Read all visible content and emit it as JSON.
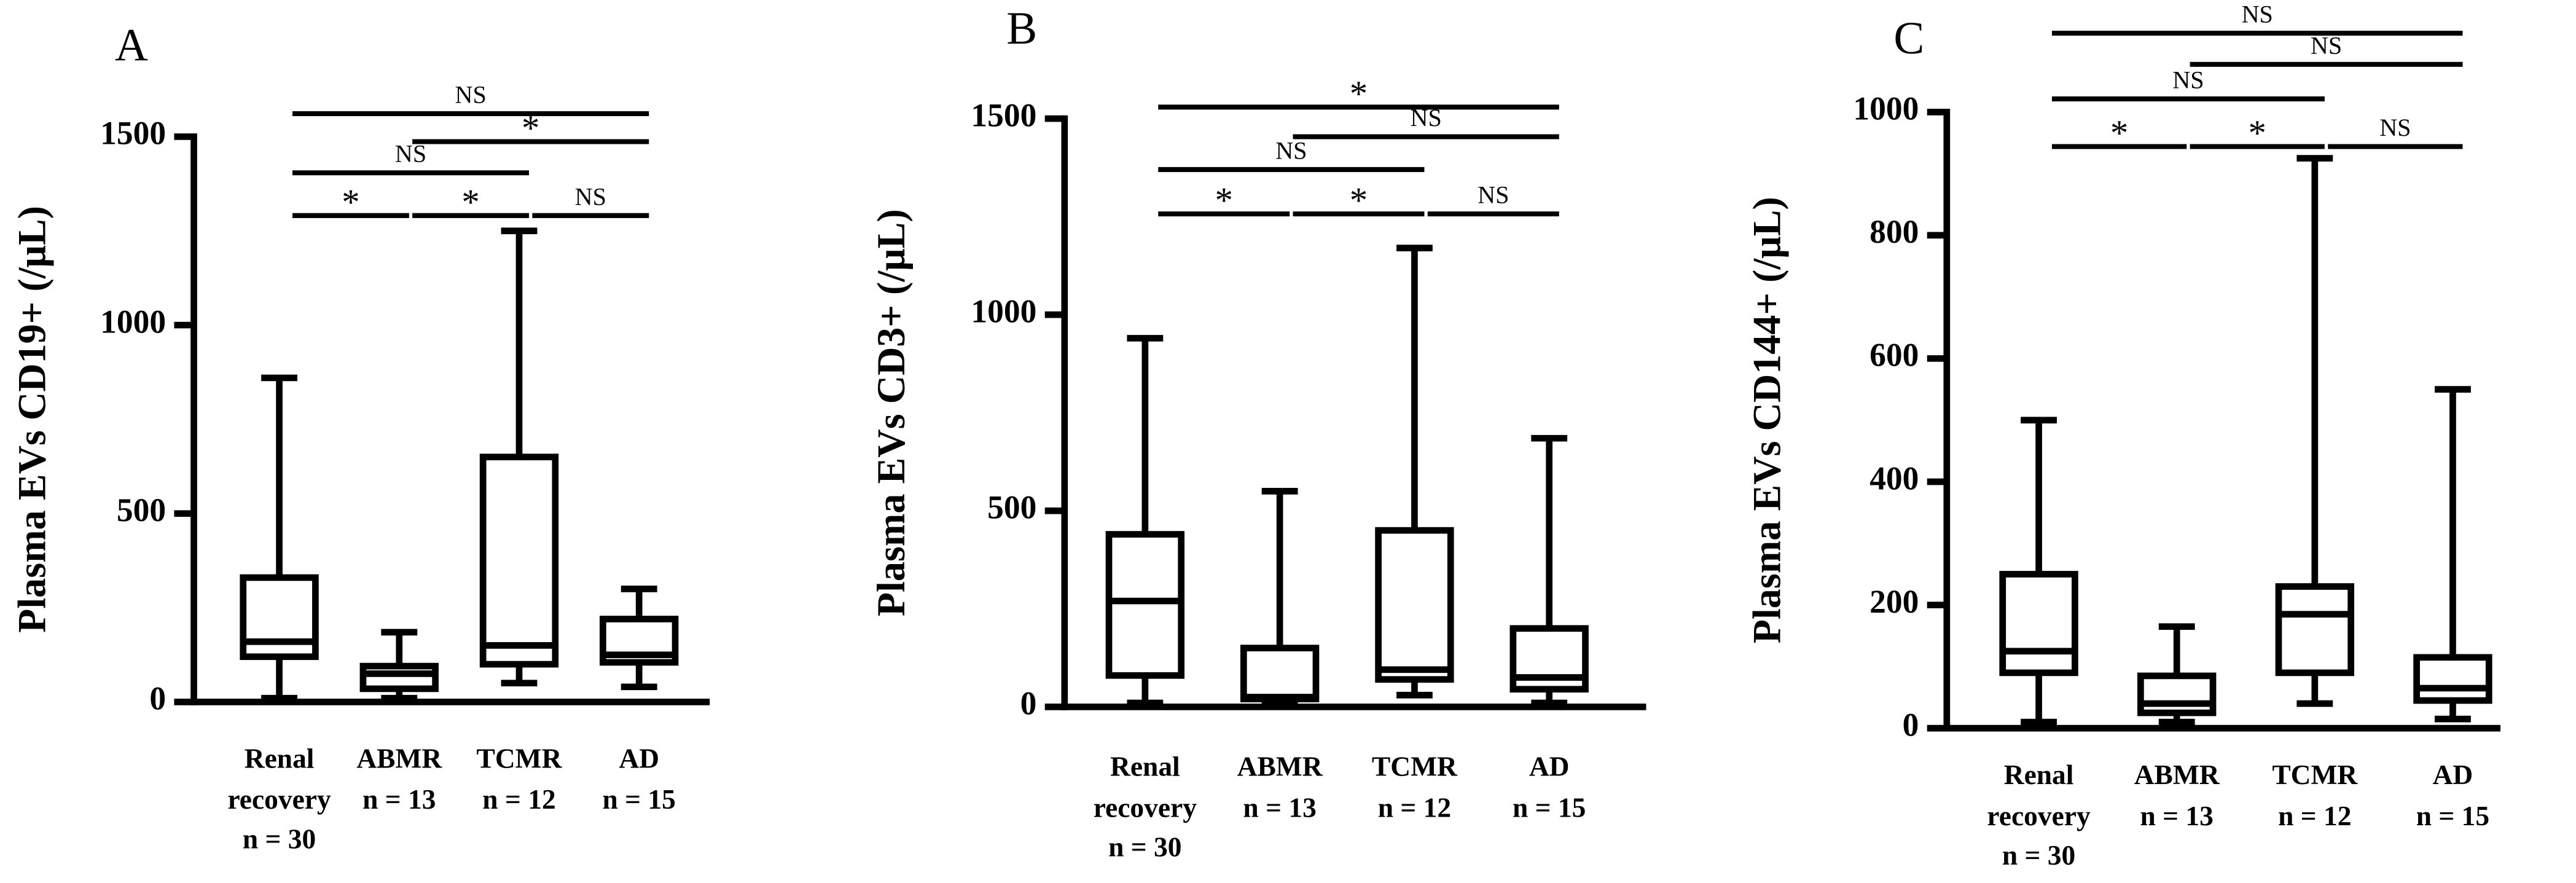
{
  "chart_data": [
    {
      "type": "box",
      "label": "A",
      "ylabel": "Plasma EVs CD19+ (/μL)",
      "categories": [
        "Renal recovery",
        "ABMR",
        "TCMR",
        "AD"
      ],
      "n_labels": [
        "n = 30",
        "n = 13",
        "n = 12",
        "n = 15"
      ],
      "boxes": [
        {
          "min": 10,
          "q1": 120,
          "median": 160,
          "q3": 330,
          "max": 860
        },
        {
          "min": 10,
          "q1": 35,
          "median": 75,
          "q3": 95,
          "max": 185
        },
        {
          "min": 50,
          "q1": 100,
          "median": 150,
          "q3": 650,
          "max": 1250
        },
        {
          "min": 40,
          "q1": 105,
          "median": 125,
          "q3": 220,
          "max": 300
        }
      ],
      "ylim": [
        0,
        1500
      ],
      "yticks": [
        0,
        500,
        1000,
        1500
      ],
      "annotations": [
        "*",
        "*",
        "NS",
        "NS",
        "*",
        "NS"
      ],
      "color": "#000000"
    },
    {
      "type": "box",
      "label": "B",
      "ylabel": "Plasma EVs CD3+ (/μL)",
      "categories": [
        "Renal recovery",
        "ABMR",
        "TCMR",
        "AD"
      ],
      "n_labels": [
        "n = 30",
        "n = 13",
        "n = 12",
        "n = 15"
      ],
      "boxes": [
        {
          "min": 10,
          "q1": 80,
          "median": 270,
          "q3": 440,
          "max": 940
        },
        {
          "min": 10,
          "q1": 20,
          "median": 25,
          "q3": 150,
          "max": 550
        },
        {
          "min": 30,
          "q1": 70,
          "median": 95,
          "q3": 450,
          "max": 1170
        },
        {
          "min": 10,
          "q1": 45,
          "median": 75,
          "q3": 200,
          "max": 685
        }
      ],
      "ylim": [
        0,
        1500
      ],
      "yticks": [
        0,
        500,
        1000,
        1500
      ],
      "annotations": [
        "*",
        "*",
        "NS",
        "NS",
        "NS",
        "*"
      ],
      "color": "#000000"
    },
    {
      "type": "box",
      "label": "C",
      "ylabel": "Plasma EVs CD144+ (/μL)",
      "categories": [
        "Renal recovery",
        "ABMR",
        "TCMR",
        "AD"
      ],
      "n_labels": [
        "n = 30",
        "n = 13",
        "n = 12",
        "n = 15"
      ],
      "boxes": [
        {
          "min": 10,
          "q1": 90,
          "median": 125,
          "q3": 250,
          "max": 500
        },
        {
          "min": 10,
          "q1": 25,
          "median": 40,
          "q3": 85,
          "max": 165
        },
        {
          "min": 40,
          "q1": 90,
          "median": 185,
          "q3": 230,
          "max": 925
        },
        {
          "min": 15,
          "q1": 45,
          "median": 65,
          "q3": 115,
          "max": 550
        }
      ],
      "ylim": [
        0,
        1000
      ],
      "yticks": [
        0,
        200,
        400,
        600,
        800,
        1000
      ],
      "annotations": [
        "*",
        "*",
        "NS",
        "NS",
        "NS",
        "NS"
      ],
      "color": "#000000"
    }
  ]
}
